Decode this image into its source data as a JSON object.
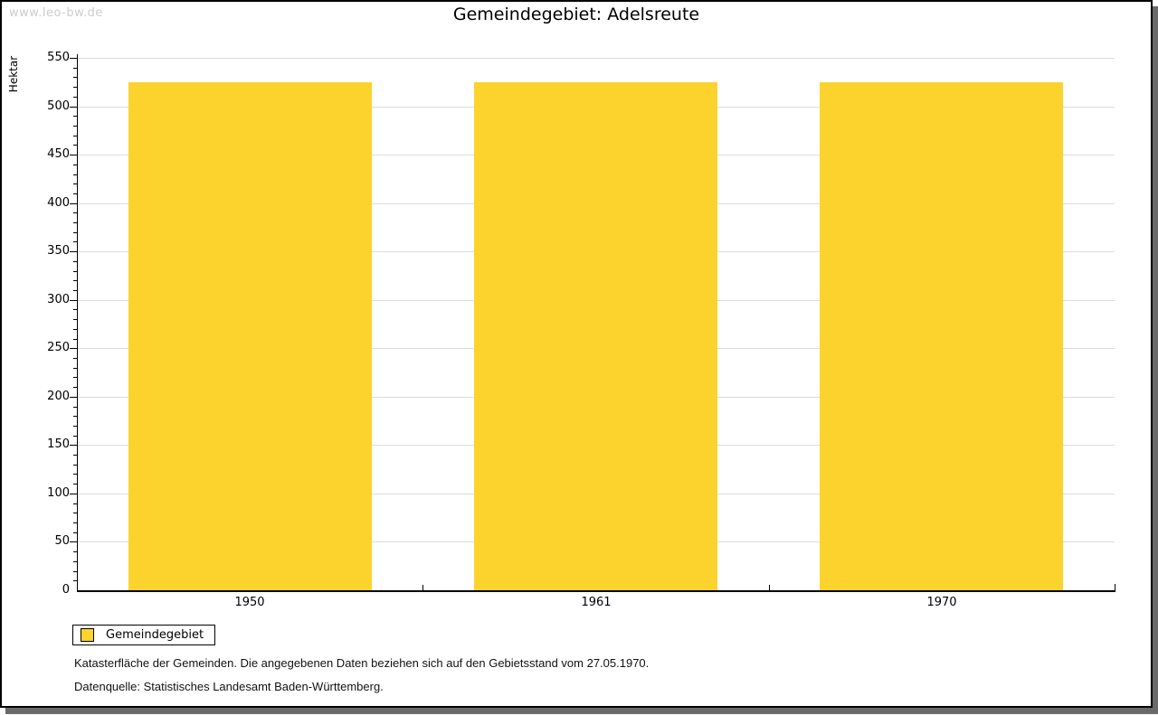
{
  "watermark": "www.leo-bw.de",
  "title": "Gemeindegebiet: Adelsreute",
  "chart_data": {
    "type": "bar",
    "title": "Gemeindegebiet: Adelsreute",
    "categories": [
      "1950",
      "1961",
      "1970"
    ],
    "series": [
      {
        "name": "Gemeindegebiet",
        "values": [
          525,
          525,
          525
        ]
      }
    ],
    "xlabel": "",
    "ylabel": "Hektar",
    "ylim": [
      0,
      550
    ],
    "y_major_step": 50,
    "y_minor_step": 10,
    "grid": true,
    "bar_color": "#FCD32D",
    "legend_position": "bottom-left"
  },
  "legend": {
    "label": "Gemeindegebiet",
    "swatch_color": "#FCD32D"
  },
  "footnotes": [
    "Katasterfläche der Gemeinden. Die angegebenen Daten beziehen sich auf den Gebietsstand vom 27.05.1970.",
    "Datenquelle: Statistisches Landesamt Baden-Württemberg."
  ]
}
